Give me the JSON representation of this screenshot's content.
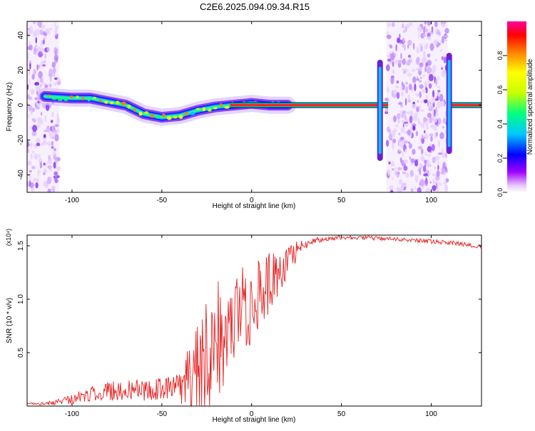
{
  "figure": {
    "title": "C2E6.2025.094.09.34.R15"
  },
  "chart_data": [
    {
      "type": "heatmap",
      "title": "C2E6.2025.094.09.34.R15",
      "xlabel": "Height of straight line (km)",
      "ylabel": "Frequency (Hz)",
      "xlim": [
        -125,
        128
      ],
      "ylim": [
        -50,
        48
      ],
      "xticks": [
        -100,
        -50,
        0,
        50,
        100
      ],
      "yticks": [
        -40,
        -20,
        0,
        20,
        40
      ],
      "colorbar": {
        "label": "Normalized spectral amplitude",
        "range": [
          0.0,
          1.0
        ],
        "ticks": [
          "0.0",
          "0.2",
          "0.4",
          "0.6",
          "0.8"
        ],
        "colormap": [
          "#ffffff",
          "#a000ff",
          "#0000ff",
          "#00c8ff",
          "#00ff80",
          "#c8ff00",
          "#ffff00",
          "#ff8000",
          "#ff0000",
          "#ff00a0"
        ]
      },
      "doppler_trace": {
        "x": [
          -115,
          -100,
          -90,
          -80,
          -70,
          -60,
          -50,
          -40,
          -30,
          -20,
          -10,
          0,
          10,
          20,
          40,
          60,
          70,
          72,
          110,
          112,
          120,
          128
        ],
        "y": [
          5,
          4,
          4,
          2,
          0,
          -5,
          -7,
          -6,
          -3,
          -1,
          0,
          1,
          0,
          0,
          0,
          0,
          0,
          0,
          0,
          0,
          0,
          0
        ]
      },
      "noise_bands": [
        [
          -125,
          -107
        ],
        [
          75,
          109
        ]
      ]
    },
    {
      "type": "line",
      "xlabel": "Height of straight line (km)",
      "ylabel": "SNR (10 * v/v)",
      "y_multiplier": "(x10⁴)",
      "xlim": [
        -125,
        128
      ],
      "ylim": [
        0,
        1.6
      ],
      "xticks": [
        -100,
        -50,
        0,
        50,
        100
      ],
      "yticks": [
        "0.5",
        "1.0",
        "1.5"
      ],
      "series": [
        {
          "color": "#e62020",
          "trend_x": [
            -125,
            -110,
            -100,
            -90,
            -80,
            -70,
            -60,
            -50,
            -40,
            -35,
            -30,
            -25,
            -20,
            -15,
            -10,
            -5,
            0,
            5,
            10,
            15,
            20,
            25,
            30,
            35,
            40,
            50,
            60,
            70,
            80,
            90,
            100,
            110,
            120,
            128
          ],
          "trend_y": [
            0.02,
            0.03,
            0.07,
            0.11,
            0.14,
            0.15,
            0.15,
            0.16,
            0.18,
            0.22,
            0.4,
            0.5,
            0.62,
            0.7,
            0.82,
            0.9,
            0.96,
            1.05,
            1.15,
            1.22,
            1.32,
            1.45,
            1.52,
            1.55,
            1.56,
            1.58,
            1.58,
            1.57,
            1.56,
            1.55,
            1.54,
            1.53,
            1.51,
            1.49
          ],
          "noise_x": [
            -125,
            -110,
            -100,
            -80,
            -60,
            -40,
            -30,
            -20,
            -10,
            0,
            10,
            20,
            30,
            40,
            60,
            80,
            100,
            128
          ],
          "noise_amp": [
            0.01,
            0.02,
            0.05,
            0.09,
            0.1,
            0.13,
            0.55,
            0.6,
            0.4,
            0.4,
            0.3,
            0.15,
            0.05,
            0.02,
            0.02,
            0.02,
            0.02,
            0.02
          ]
        }
      ]
    }
  ]
}
